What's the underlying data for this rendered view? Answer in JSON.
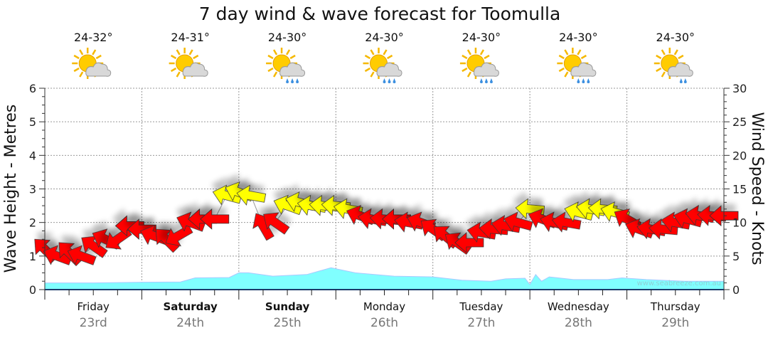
{
  "chart_data": {
    "type": "line",
    "title": "7 day wind & wave forecast for Toomulla",
    "ylabel_left": "Wave Height - Metres",
    "ylabel_right": "Wind Speed - Knots",
    "ylim_left": [
      0,
      6
    ],
    "ylim_right": [
      0,
      30
    ],
    "yticks_left": [
      "0",
      "1",
      "2",
      "3",
      "4",
      "5",
      "6"
    ],
    "yticks_right": [
      "0",
      "5",
      "10",
      "15",
      "20",
      "25",
      "30"
    ],
    "grid": true,
    "watermark": "www.seabreeze.com.au",
    "days": [
      {
        "name": "Friday",
        "date": "23rd",
        "bold": false,
        "temp": "24-32°",
        "icon": "sun-cloud-icon"
      },
      {
        "name": "Saturday",
        "date": "24th",
        "bold": true,
        "temp": "24-31°",
        "icon": "sun-cloud-icon"
      },
      {
        "name": "Sunday",
        "date": "25th",
        "bold": true,
        "temp": "24-30°",
        "icon": "sun-cloud-rain-icon"
      },
      {
        "name": "Monday",
        "date": "26th",
        "bold": false,
        "temp": "24-30°",
        "icon": "sun-cloud-rain-icon"
      },
      {
        "name": "Tuesday",
        "date": "27th",
        "bold": false,
        "temp": "24-30°",
        "icon": "sun-cloud-rain-icon"
      },
      {
        "name": "Wednesday",
        "date": "28th",
        "bold": false,
        "temp": "24-30°",
        "icon": "sun-cloud-rain-icon"
      },
      {
        "name": "Thursday",
        "date": "29th",
        "bold": false,
        "temp": "24-30°",
        "icon": "sun-cloud-light-rain-icon"
      }
    ],
    "wave_series": {
      "name": "Wave height (m)",
      "color": "#80ffff",
      "points": [
        [
          0,
          0.2
        ],
        [
          0.5,
          0.2
        ],
        [
          1.0,
          0.22
        ],
        [
          1.4,
          0.23
        ],
        [
          1.55,
          0.35
        ],
        [
          1.9,
          0.36
        ],
        [
          2.0,
          0.5
        ],
        [
          2.1,
          0.5
        ],
        [
          2.35,
          0.4
        ],
        [
          2.7,
          0.45
        ],
        [
          2.95,
          0.65
        ],
        [
          3.2,
          0.5
        ],
        [
          3.6,
          0.4
        ],
        [
          4.0,
          0.38
        ],
        [
          4.3,
          0.28
        ],
        [
          4.6,
          0.25
        ],
        [
          4.75,
          0.32
        ],
        [
          4.95,
          0.34
        ],
        [
          5.0,
          0.15
        ],
        [
          5.06,
          0.45
        ],
        [
          5.12,
          0.25
        ],
        [
          5.2,
          0.38
        ],
        [
          5.45,
          0.3
        ],
        [
          5.8,
          0.3
        ],
        [
          5.95,
          0.35
        ],
        [
          6.2,
          0.3
        ],
        [
          6.6,
          0.25
        ],
        [
          7.0,
          0.25
        ]
      ]
    },
    "wind_series": {
      "name": "Wind speed (knots)",
      "colors": {
        "light": "#ff0000",
        "fresh": "#ffff00"
      },
      "points": [
        [
          0.0,
          6,
          225,
          "light"
        ],
        [
          0.125,
          5,
          200,
          "light"
        ],
        [
          0.25,
          5.5,
          225,
          "light"
        ],
        [
          0.375,
          5,
          200,
          "light"
        ],
        [
          0.5,
          6.5,
          215,
          "light"
        ],
        [
          0.625,
          7.5,
          205,
          "light"
        ],
        [
          0.75,
          7.5,
          145,
          "light"
        ],
        [
          0.875,
          9.5,
          180,
          "light"
        ],
        [
          1.0,
          9,
          180,
          "light"
        ],
        [
          1.125,
          8,
          200,
          "light"
        ],
        [
          1.25,
          7.5,
          225,
          "light"
        ],
        [
          1.375,
          8,
          150,
          "light"
        ],
        [
          1.5,
          10,
          200,
          "light"
        ],
        [
          1.625,
          10.5,
          180,
          "light"
        ],
        [
          1.75,
          10.5,
          180,
          "light"
        ],
        [
          1.875,
          14,
          195,
          "fresh"
        ],
        [
          2.0,
          14.5,
          200,
          "fresh"
        ],
        [
          2.125,
          14,
          190,
          "fresh"
        ],
        [
          2.25,
          9.5,
          240,
          "light"
        ],
        [
          2.375,
          10,
          215,
          "light"
        ],
        [
          2.5,
          12.5,
          200,
          "fresh"
        ],
        [
          2.625,
          13,
          195,
          "fresh"
        ],
        [
          2.75,
          12.5,
          190,
          "fresh"
        ],
        [
          2.875,
          12.5,
          185,
          "fresh"
        ],
        [
          3.0,
          12.5,
          185,
          "fresh"
        ],
        [
          3.125,
          12,
          190,
          "fresh"
        ],
        [
          3.25,
          11,
          200,
          "light"
        ],
        [
          3.375,
          10.5,
          190,
          "light"
        ],
        [
          3.5,
          10.5,
          185,
          "light"
        ],
        [
          3.625,
          10.5,
          180,
          "light"
        ],
        [
          3.75,
          10,
          190,
          "light"
        ],
        [
          3.875,
          10,
          200,
          "light"
        ],
        [
          4.0,
          9,
          215,
          "light"
        ],
        [
          4.125,
          8,
          220,
          "light"
        ],
        [
          4.25,
          7,
          215,
          "light"
        ],
        [
          4.375,
          7,
          180,
          "light"
        ],
        [
          4.5,
          8.5,
          190,
          "light"
        ],
        [
          4.625,
          9,
          185,
          "light"
        ],
        [
          4.75,
          9.5,
          190,
          "light"
        ],
        [
          4.875,
          10,
          195,
          "light"
        ],
        [
          5.0,
          12,
          185,
          "fresh"
        ],
        [
          5.125,
          10.5,
          200,
          "light"
        ],
        [
          5.25,
          10,
          195,
          "light"
        ],
        [
          5.375,
          10,
          190,
          "light"
        ],
        [
          5.5,
          11.5,
          195,
          "fresh"
        ],
        [
          5.625,
          12,
          190,
          "fresh"
        ],
        [
          5.75,
          12,
          185,
          "fresh"
        ],
        [
          5.875,
          11.5,
          195,
          "fresh"
        ],
        [
          6.0,
          10.5,
          210,
          "light"
        ],
        [
          6.125,
          9,
          200,
          "light"
        ],
        [
          6.25,
          9,
          190,
          "light"
        ],
        [
          6.375,
          9,
          185,
          "light"
        ],
        [
          6.5,
          10,
          190,
          "light"
        ],
        [
          6.625,
          10.5,
          195,
          "light"
        ],
        [
          6.75,
          11,
          190,
          "light"
        ],
        [
          6.875,
          11,
          185,
          "light"
        ],
        [
          7.0,
          11,
          180,
          "light"
        ]
      ]
    }
  }
}
